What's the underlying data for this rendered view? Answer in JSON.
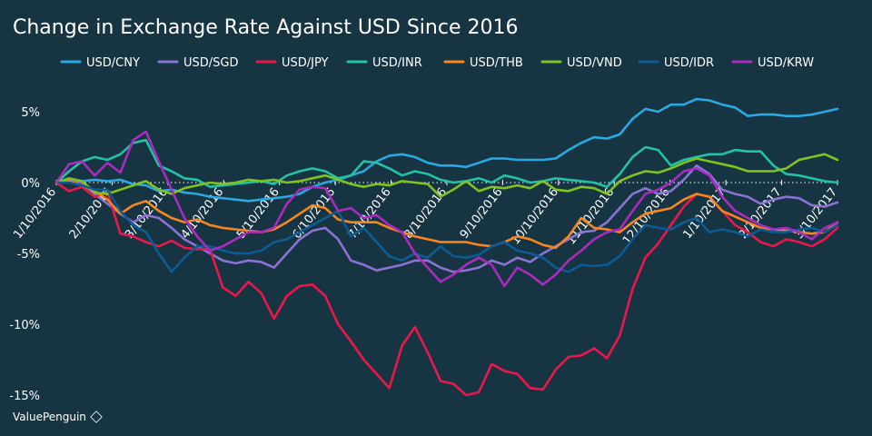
{
  "chart_data": {
    "type": "line",
    "title": "Change in Exchange Rate Against USD Since 2016",
    "xlabel": "",
    "ylabel": "",
    "y_tick_labels": [
      "5%",
      "0%",
      "-5%",
      "-10%",
      "-15%"
    ],
    "y_ticks": [
      5,
      0,
      -5,
      -10,
      -15
    ],
    "ylim": [
      -15.5,
      7
    ],
    "x_tick_labels": [
      "1/10/2016",
      "2/10/2016",
      "3/10/2016",
      "4/10/2016",
      "5/10/2016",
      "6/10/2016",
      "7/10/2016",
      "8/10/2016",
      "9/10/2016",
      "10/10/2016",
      "11/10/2016",
      "12/10/2016",
      "1/10/2017",
      "2/10/2017",
      "3/10/2017"
    ],
    "legend_position": "top",
    "grid": false,
    "series": [
      {
        "name": "USD/CNY",
        "color": "#29a9e1",
        "values": [
          0,
          0.2,
          0.1,
          0.2,
          0.1,
          0.2,
          -0.1,
          -0.2,
          -0.6,
          -0.5,
          -0.7,
          -0.8,
          -1.0,
          -1.1,
          -1.2,
          -1.3,
          -1.2,
          -1.1,
          -1.0,
          -0.8,
          -0.3,
          0,
          0.2,
          0.5,
          0.8,
          1.5,
          1.9,
          2.0,
          1.8,
          1.4,
          1.2,
          1.2,
          1.1,
          1.4,
          1.7,
          1.7,
          1.6,
          1.6,
          1.6,
          1.7,
          2.3,
          2.8,
          3.2,
          3.1,
          3.4,
          4.5,
          5.2,
          5.0,
          5.5,
          5.5,
          5.9,
          5.8,
          5.5,
          5.3,
          4.7,
          4.8,
          4.8,
          4.7,
          4.7,
          4.8,
          5.0,
          5.2
        ]
      },
      {
        "name": "USD/SGD",
        "color": "#8b73d4",
        "values": [
          0,
          0.3,
          0,
          -0.8,
          -1.5,
          -2.2,
          -2.8,
          -2.3,
          -2.5,
          -3.2,
          -4.0,
          -4.5,
          -5.0,
          -5.5,
          -5.7,
          -5.5,
          -5.6,
          -6.0,
          -5.0,
          -4.0,
          -3.4,
          -3.2,
          -4.0,
          -5.5,
          -5.8,
          -6.2,
          -6.0,
          -5.8,
          -5.5,
          -5.5,
          -6.0,
          -6.3,
          -6.2,
          -6.0,
          -5.5,
          -5.8,
          -5.3,
          -5.6,
          -5.0,
          -4.5,
          -4.0,
          -3.5,
          -3.4,
          -2.8,
          -1.8,
          -0.8,
          -0.4,
          -0.8,
          -0.6,
          0.2,
          1.2,
          0.6,
          -0.5,
          -0.8,
          -1.0,
          -1.5,
          -1.2,
          -1.0,
          -1.1,
          -1.6,
          -1.7,
          -1.4
        ]
      },
      {
        "name": "USD/JPY",
        "color": "#e8184a",
        "values": [
          0,
          -0.6,
          -0.3,
          -1.0,
          -0.7,
          -3.6,
          -3.8,
          -4.2,
          -4.5,
          -4.1,
          -4.6,
          -4.7,
          -4.7,
          -7.4,
          -8.0,
          -7.0,
          -7.8,
          -9.6,
          -8.0,
          -7.3,
          -7.2,
          -8.0,
          -10.0,
          -11.2,
          -12.5,
          -13.5,
          -14.5,
          -11.5,
          -10.2,
          -12.0,
          -14.0,
          -14.2,
          -15.0,
          -14.8,
          -12.8,
          -13.3,
          -13.5,
          -14.5,
          -14.6,
          -13.2,
          -12.3,
          -12.2,
          -11.7,
          -12.4,
          -10.8,
          -7.5,
          -5.3,
          -4.3,
          -3.0,
          -1.7,
          -0.8,
          -1.0,
          -2.0,
          -3.0,
          -3.5,
          -4.2,
          -4.5,
          -4.0,
          -4.2,
          -4.5,
          -4.0,
          -3.2
        ]
      },
      {
        "name": "USD/INR",
        "color": "#21c2a6",
        "values": [
          0,
          0.8,
          1.5,
          1.8,
          1.6,
          2.0,
          2.8,
          3.0,
          1.2,
          0.8,
          0.3,
          0.2,
          -0.3,
          -0.2,
          -0.1,
          0,
          0.1,
          -0.1,
          0.5,
          0.8,
          1.0,
          0.8,
          0.3,
          0.5,
          1.5,
          1.4,
          1.0,
          0.5,
          0.8,
          0.6,
          0.2,
          0,
          0.1,
          0.3,
          0,
          0.5,
          0.3,
          0,
          0.1,
          0.3,
          0.2,
          0.1,
          0,
          -0.3,
          0.6,
          1.8,
          2.5,
          2.3,
          1.2,
          1.6,
          1.8,
          2.0,
          2.0,
          2.3,
          2.2,
          2.2,
          1.2,
          0.6,
          0.5,
          0.3,
          0.1,
          0.0
        ]
      },
      {
        "name": "USD/THB",
        "color": "#f7861e",
        "values": [
          0,
          0.1,
          -0.2,
          -0.6,
          -1.2,
          -2.2,
          -1.6,
          -1.3,
          -2.0,
          -2.5,
          -2.8,
          -2.6,
          -3.0,
          -3.2,
          -3.3,
          -3.4,
          -3.5,
          -3.3,
          -2.8,
          -2.2,
          -1.6,
          -1.8,
          -2.6,
          -2.8,
          -2.8,
          -2.8,
          -3.2,
          -3.5,
          -3.8,
          -4.0,
          -4.2,
          -4.2,
          -4.2,
          -4.4,
          -4.5,
          -4.2,
          -3.8,
          -4.0,
          -4.4,
          -4.6,
          -3.8,
          -2.5,
          -3.2,
          -3.3,
          -3.5,
          -2.8,
          -2.2,
          -2.0,
          -1.8,
          -1.2,
          -0.8,
          -1.0,
          -2.0,
          -2.4,
          -2.8,
          -3.2,
          -3.3,
          -3.4,
          -3.5,
          -3.6,
          -3.5,
          -2.8
        ]
      },
      {
        "name": "USD/VND",
        "color": "#7fc321",
        "values": [
          0,
          0.3,
          0.1,
          -0.7,
          -0.8,
          -0.5,
          -0.2,
          0.1,
          -0.5,
          -0.8,
          -0.4,
          -0.2,
          0,
          -0.1,
          0,
          0.2,
          0.1,
          0.2,
          0,
          0.1,
          0.3,
          0.5,
          0.2,
          -0.1,
          -0.3,
          -0.1,
          -0.2,
          0.1,
          0,
          -0.1,
          -1.0,
          -0.5,
          0.1,
          -0.6,
          -0.3,
          -0.4,
          -0.2,
          -0.4,
          0.1,
          -0.5,
          -0.6,
          -0.3,
          -0.4,
          -0.8,
          0.1,
          0.5,
          0.8,
          0.7,
          1.0,
          1.4,
          1.7,
          1.5,
          1.3,
          1.1,
          0.8,
          0.8,
          0.8,
          1.0,
          1.6,
          1.8,
          2.0,
          1.6
        ]
      },
      {
        "name": "USD/IDR",
        "color": "#0b5c95",
        "values": [
          0,
          0,
          -0.2,
          -0.5,
          -0.5,
          -2.0,
          -3.0,
          -3.5,
          -5.0,
          -6.3,
          -5.3,
          -4.5,
          -4.5,
          -4.8,
          -5.0,
          -5.0,
          -4.8,
          -4.2,
          -4.0,
          -3.5,
          -3.0,
          -2.5,
          -2.0,
          -3.8,
          -3.2,
          -4.2,
          -5.2,
          -5.5,
          -5.0,
          -5.3,
          -4.5,
          -5.2,
          -5.3,
          -5.1,
          -4.5,
          -4.2,
          -4.8,
          -5.0,
          -5.3,
          -6.0,
          -6.3,
          -5.8,
          -5.9,
          -5.8,
          -5.2,
          -4.0,
          -3.0,
          -3.2,
          -3.3,
          -2.8,
          -2.5,
          -3.5,
          -3.3,
          -3.5,
          -3.8,
          -3.3,
          -3.5,
          -3.5,
          -3.3,
          -3.2,
          -3.5,
          -3.0
        ]
      },
      {
        "name": "USD/KRW",
        "color": "#a92cbe",
        "values": [
          0,
          1.3,
          1.5,
          0.5,
          1.4,
          0.7,
          3.0,
          3.6,
          1.5,
          -0.5,
          -2.5,
          -3.8,
          -4.8,
          -4.5,
          -4.0,
          -3.5,
          -3.5,
          -3.2,
          -1.5,
          -0.5,
          -0.3,
          -0.4,
          -2.0,
          -1.8,
          -2.5,
          -2.3,
          -3.0,
          -3.5,
          -5.0,
          -6.0,
          -7.0,
          -6.5,
          -5.8,
          -5.3,
          -5.8,
          -7.3,
          -6.0,
          -6.5,
          -7.2,
          -6.5,
          -5.5,
          -4.8,
          -4.0,
          -3.5,
          -3.3,
          -2.0,
          -0.8,
          -0.5,
          0,
          0.8,
          1.0,
          0.5,
          -1.0,
          -2.0,
          -2.5,
          -3.0,
          -3.3,
          -3.2,
          -3.5,
          -4.0,
          -3.2,
          -2.8
        ]
      }
    ]
  },
  "branding": {
    "text": "ValuePenguin"
  }
}
